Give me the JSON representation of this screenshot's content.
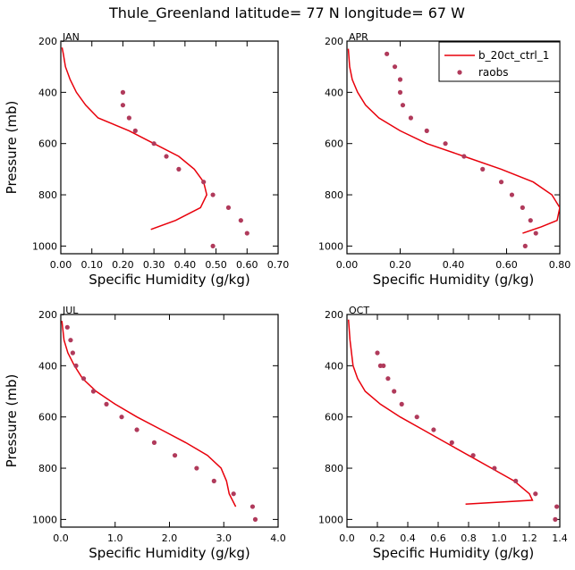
{
  "title": "Thule_Greenland   latitude= 77 N longitude= 67 W",
  "legend": {
    "model": "b_20ct_ctrl_1",
    "obs": "raobs"
  },
  "colors": {
    "model": "#e8000b",
    "obs": "#b03a5b"
  },
  "chart_data": [
    {
      "type": "line",
      "label": "JAN",
      "xlabel": "Specific Humidity (g/kg)",
      "ylabel": "Pressure (mb)",
      "xlim": [
        0,
        0.7
      ],
      "ylim": [
        1030,
        200
      ],
      "y_reversed": true,
      "xticks": [
        "0.00",
        "0.10",
        "0.20",
        "0.30",
        "0.40",
        "0.50",
        "0.60",
        "0.70"
      ],
      "yticks": [
        "200",
        "400",
        "600",
        "800",
        "1000"
      ],
      "series": [
        {
          "name": "b_20ct_ctrl_1",
          "kind": "line",
          "x": [
            0.29,
            0.37,
            0.45,
            0.47,
            0.46,
            0.43,
            0.38,
            0.3,
            0.22,
            0.12,
            0.08,
            0.05,
            0.03,
            0.015,
            0.008,
            0.004
          ],
          "y": [
            935,
            900,
            850,
            800,
            750,
            700,
            650,
            600,
            550,
            500,
            450,
            400,
            350,
            300,
            250,
            225
          ]
        },
        {
          "name": "raobs",
          "kind": "scatter",
          "x": [
            0.49,
            0.6,
            0.58,
            0.54,
            0.49,
            0.46,
            0.38,
            0.34,
            0.3,
            0.24,
            0.22,
            0.2,
            0.2
          ],
          "y": [
            1000,
            950,
            900,
            850,
            800,
            750,
            700,
            650,
            600,
            550,
            500,
            450,
            400
          ]
        }
      ]
    },
    {
      "type": "line",
      "label": "APR",
      "xlabel": "Specific Humidity (g/kg)",
      "ylabel": "",
      "xlim": [
        0,
        0.8
      ],
      "ylim": [
        1030,
        200
      ],
      "y_reversed": true,
      "xticks": [
        "0.00",
        "0.20",
        "0.40",
        "0.60",
        "0.80"
      ],
      "yticks": [
        "200",
        "400",
        "600",
        "800",
        "1000"
      ],
      "series": [
        {
          "name": "b_20ct_ctrl_1",
          "kind": "line",
          "x": [
            0.66,
            0.73,
            0.79,
            0.8,
            0.77,
            0.7,
            0.58,
            0.44,
            0.3,
            0.2,
            0.12,
            0.07,
            0.04,
            0.02,
            0.01,
            0.005
          ],
          "y": [
            950,
            925,
            900,
            850,
            800,
            750,
            700,
            650,
            600,
            550,
            500,
            450,
            400,
            350,
            300,
            230
          ]
        },
        {
          "name": "raobs",
          "kind": "scatter",
          "x": [
            0.67,
            0.71,
            0.69,
            0.66,
            0.62,
            0.58,
            0.51,
            0.44,
            0.37,
            0.3,
            0.24,
            0.21,
            0.2,
            0.2,
            0.18,
            0.15
          ],
          "y": [
            1000,
            950,
            900,
            850,
            800,
            750,
            700,
            650,
            600,
            550,
            500,
            450,
            400,
            350,
            300,
            250
          ]
        }
      ]
    },
    {
      "type": "line",
      "label": "JUL",
      "xlabel": "Specific Humidity (g/kg)",
      "ylabel": "Pressure (mb)",
      "xlim": [
        0,
        4.0
      ],
      "ylim": [
        1030,
        200
      ],
      "y_reversed": true,
      "xticks": [
        "0.0",
        "1.0",
        "2.0",
        "3.0",
        "4.0"
      ],
      "yticks": [
        "200",
        "400",
        "600",
        "800",
        "1000"
      ],
      "series": [
        {
          "name": "b_20ct_ctrl_1",
          "kind": "line",
          "x": [
            3.22,
            3.1,
            3.05,
            2.95,
            2.7,
            2.3,
            1.85,
            1.4,
            1.0,
            0.65,
            0.4,
            0.25,
            0.13,
            0.06,
            0.02
          ],
          "y": [
            950,
            900,
            850,
            800,
            750,
            700,
            650,
            600,
            550,
            500,
            450,
            400,
            350,
            300,
            225
          ]
        },
        {
          "name": "raobs",
          "kind": "scatter",
          "x": [
            3.58,
            3.53,
            3.18,
            2.82,
            2.5,
            2.1,
            1.72,
            1.4,
            1.12,
            0.84,
            0.6,
            0.42,
            0.28,
            0.22,
            0.18,
            0.12
          ],
          "y": [
            1000,
            950,
            900,
            850,
            800,
            750,
            700,
            650,
            600,
            550,
            500,
            450,
            400,
            350,
            300,
            250
          ]
        }
      ]
    },
    {
      "type": "line",
      "label": "OCT",
      "xlabel": "Specific Humidity (g/kg)",
      "ylabel": "",
      "xlim": [
        0,
        1.4
      ],
      "ylim": [
        1030,
        200
      ],
      "y_reversed": true,
      "xticks": [
        "0.0",
        "0.2",
        "0.4",
        "0.6",
        "0.8",
        "1.0",
        "1.2",
        "1.4"
      ],
      "yticks": [
        "200",
        "400",
        "600",
        "800",
        "1000"
      ],
      "series": [
        {
          "name": "b_20ct_ctrl_1",
          "kind": "line",
          "x": [
            0.78,
            1.22,
            1.2,
            1.1,
            0.95,
            0.8,
            0.65,
            0.5,
            0.35,
            0.22,
            0.12,
            0.07,
            0.04,
            0.02,
            0.01
          ],
          "y": [
            940,
            925,
            900,
            850,
            800,
            750,
            700,
            650,
            600,
            550,
            500,
            450,
            400,
            300,
            220
          ]
        },
        {
          "name": "raobs",
          "kind": "scatter",
          "x": [
            1.37,
            1.38,
            1.24,
            1.11,
            0.97,
            0.83,
            0.69,
            0.57,
            0.46,
            0.36,
            0.31,
            0.27,
            0.24,
            0.22,
            0.2
          ],
          "y": [
            1000,
            950,
            900,
            850,
            800,
            750,
            700,
            650,
            600,
            550,
            500,
            450,
            400,
            400,
            350
          ]
        }
      ]
    }
  ]
}
